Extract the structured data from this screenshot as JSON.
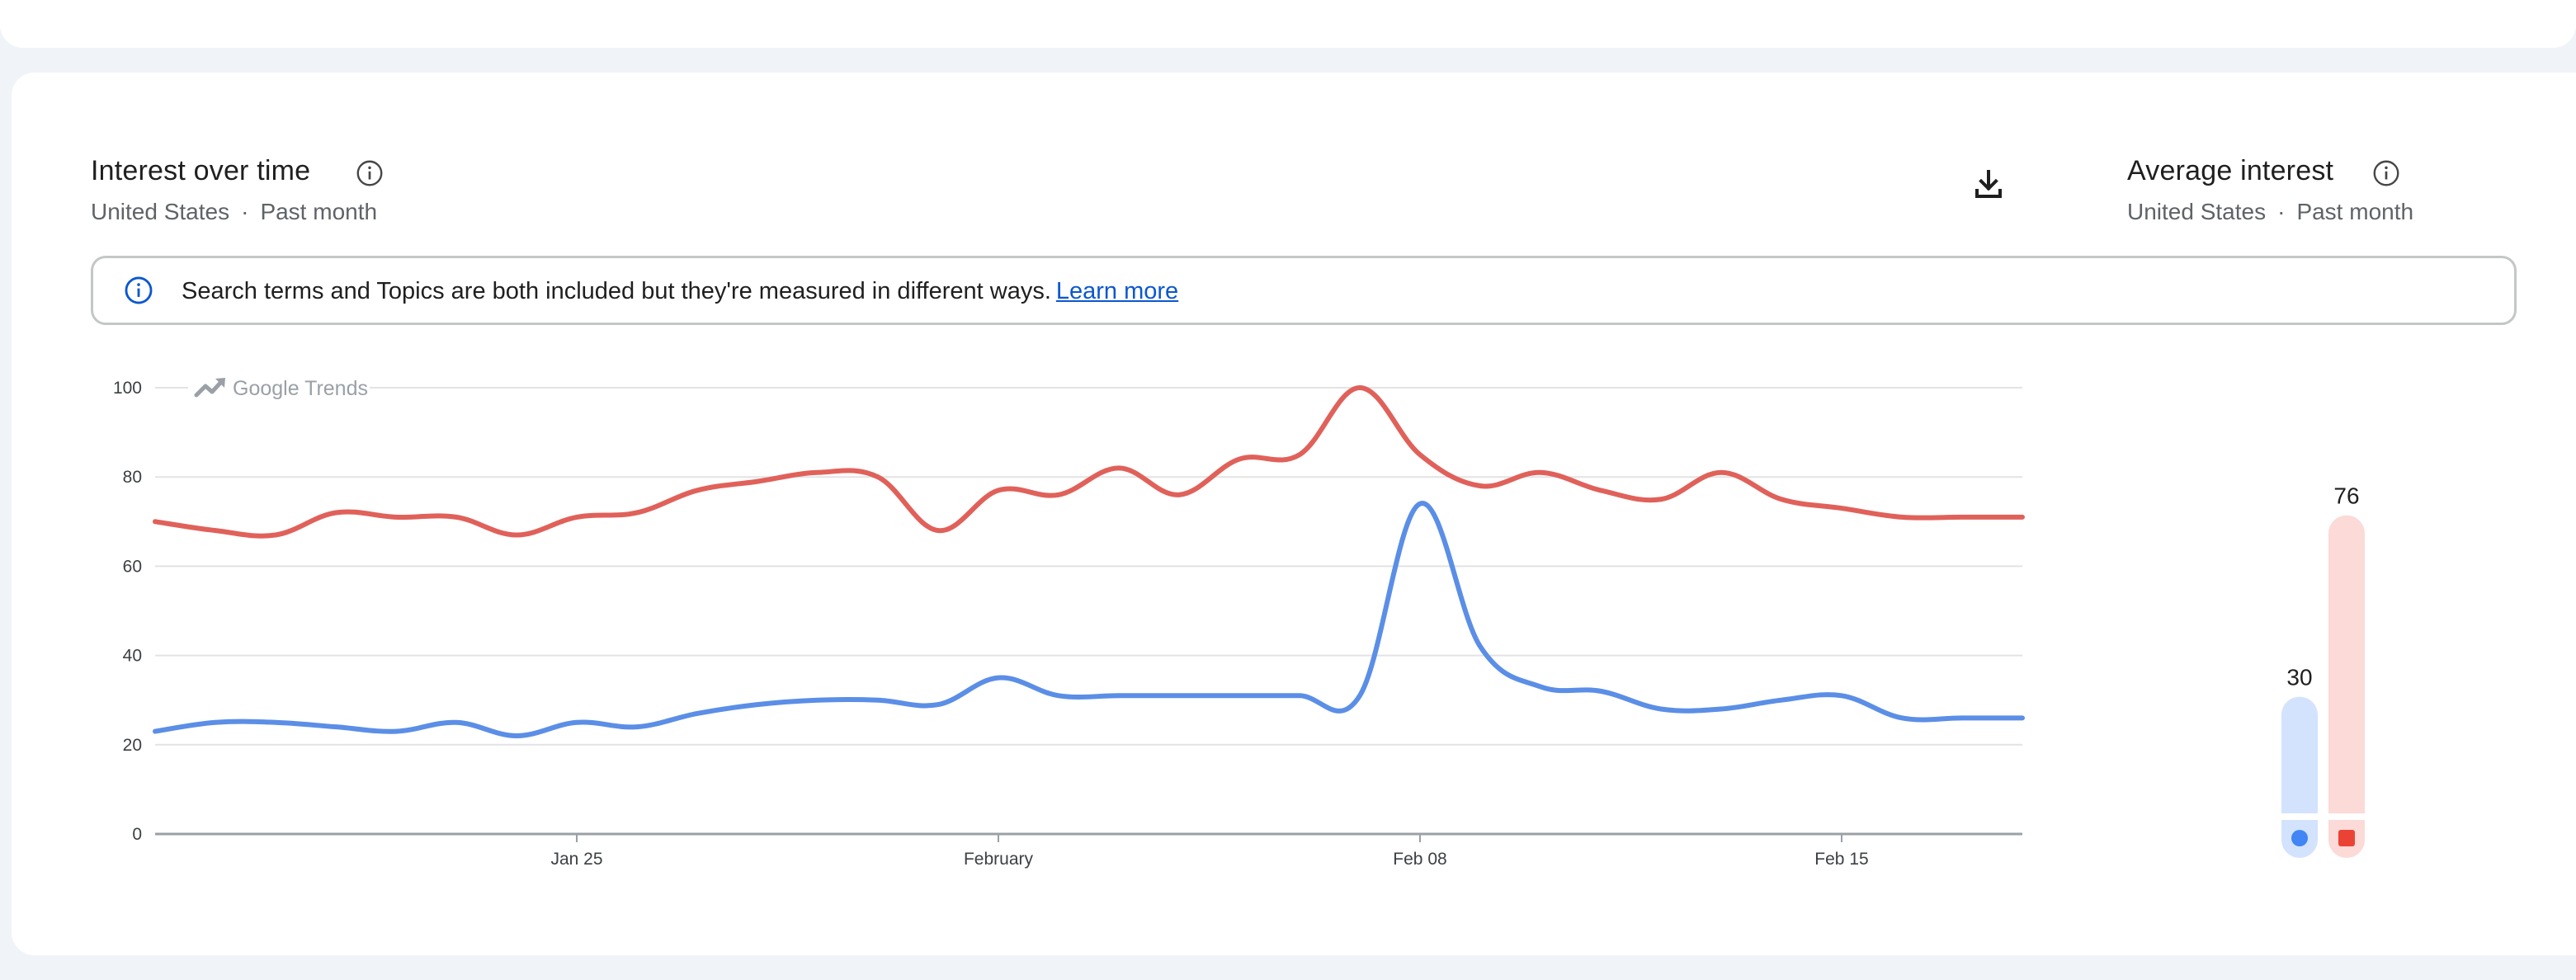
{
  "main_chart": {
    "title": "Interest over time",
    "region": "United States",
    "period": "Past month",
    "watermark": "Google Trends"
  },
  "average": {
    "title": "Average interest",
    "region": "United States",
    "period": "Past month"
  },
  "banner": {
    "text": "Search terms and Topics are both included but they're measured in different ways.",
    "link": "Learn more"
  },
  "colors": {
    "series_blue": "#5b8ee6",
    "series_red": "#e0615a",
    "bar_blue_bg": "#d3e3fd",
    "bar_red_bg": "#fbdad8",
    "marker_blue": "#4285f4",
    "marker_red": "#ea4335"
  },
  "chart_data": [
    {
      "type": "line",
      "title": "Interest over time",
      "xlabel": "",
      "ylabel": "",
      "ylim": [
        0,
        100
      ],
      "yticks": [
        0,
        20,
        40,
        60,
        80,
        100
      ],
      "xticks": [
        "Jan 25",
        "February",
        "Feb 08",
        "Feb 15"
      ],
      "x": [
        "Jan 18",
        "Jan 19",
        "Jan 20",
        "Jan 21",
        "Jan 22",
        "Jan 23",
        "Jan 24",
        "Jan 25",
        "Jan 26",
        "Jan 27",
        "Jan 28",
        "Jan 29",
        "Jan 30",
        "Jan 31",
        "Feb 01",
        "Feb 02",
        "Feb 03",
        "Feb 04",
        "Feb 05",
        "Feb 06",
        "Feb 07",
        "Feb 08",
        "Feb 09",
        "Feb 10",
        "Feb 11",
        "Feb 12",
        "Feb 13",
        "Feb 14",
        "Feb 15",
        "Feb 16",
        "Feb 17",
        "Feb 18"
      ],
      "grid": true,
      "series": [
        {
          "values": [
            23,
            25,
            25,
            24,
            23,
            25,
            22,
            25,
            24,
            27,
            29,
            30,
            30,
            29,
            35,
            31,
            31,
            31,
            31,
            31,
            31,
            74,
            42,
            33,
            32,
            28,
            28,
            30,
            31,
            26,
            26,
            26
          ]
        },
        {
          "values": [
            70,
            68,
            67,
            72,
            71,
            71,
            67,
            71,
            72,
            77,
            79,
            81,
            80,
            68,
            77,
            76,
            82,
            76,
            84,
            85,
            100,
            85,
            78,
            81,
            77,
            75,
            81,
            75,
            73,
            71,
            71,
            71
          ]
        }
      ]
    },
    {
      "type": "bar",
      "title": "Average interest",
      "categories": [
        "",
        ""
      ],
      "values": [
        30,
        76
      ],
      "ylim": [
        0,
        100
      ]
    }
  ]
}
